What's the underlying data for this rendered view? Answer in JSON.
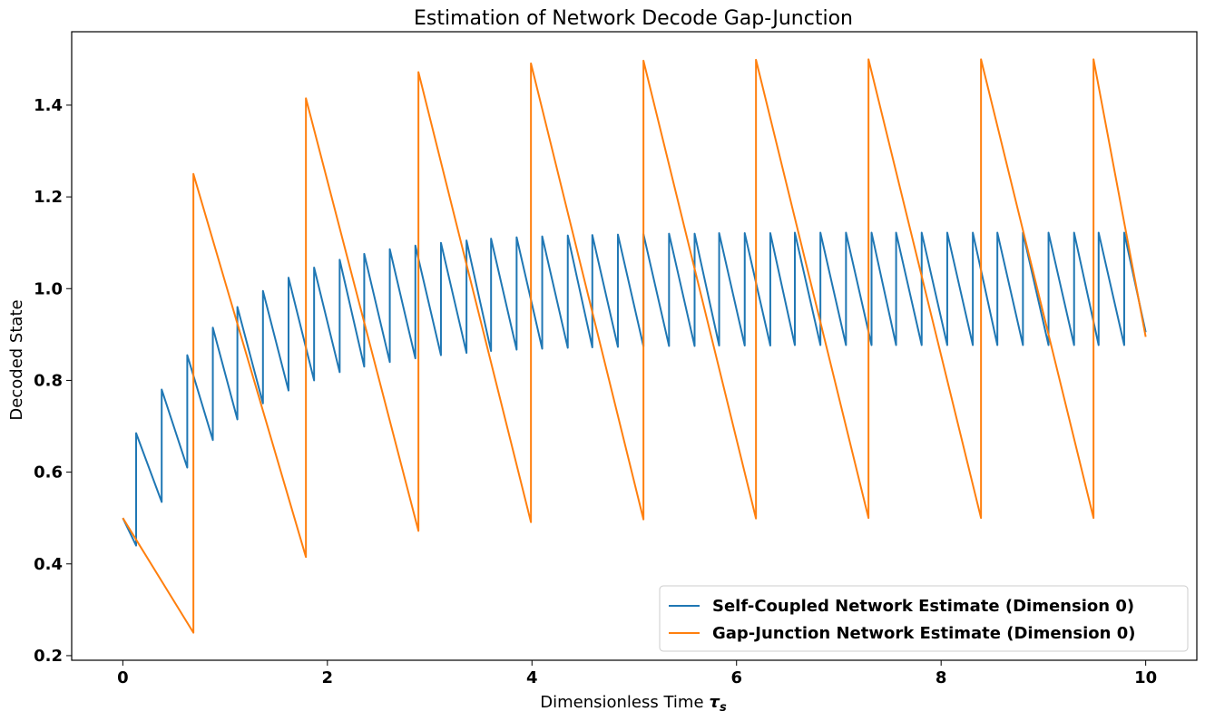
{
  "chart_data": {
    "type": "line",
    "title": "Estimation of Network Decode Gap-Junction",
    "xlabel": "Dimensionless Time",
    "xlabel_symbol": "τ",
    "xlabel_subscript": "s",
    "ylabel": "Decoded State",
    "xlim": [
      -0.5,
      10.5
    ],
    "ylim": [
      0.19,
      1.56
    ],
    "xticks": [
      0,
      2,
      4,
      6,
      8,
      10
    ],
    "yticks": [
      0.2,
      0.4,
      0.6,
      0.8,
      1.0,
      1.2,
      1.4
    ],
    "xtick_labels": [
      "0",
      "2",
      "4",
      "6",
      "8",
      "10"
    ],
    "ytick_labels": [
      "0.2",
      "0.4",
      "0.6",
      "0.8",
      "1.0",
      "1.2",
      "1.4"
    ],
    "grid": false,
    "legend_position": "lower-right",
    "series": [
      {
        "name": "Self-Coupled  Network Estimate (Dimension 0)",
        "color": "#1f77b4",
        "x": [
          0,
          0.13,
          0.13,
          0.38,
          0.38,
          0.63,
          0.63,
          0.88,
          0.88,
          1.12,
          1.12,
          1.37,
          1.37,
          1.62,
          1.62,
          1.87,
          1.87,
          2.12,
          2.12,
          2.36,
          2.36,
          2.61,
          2.61,
          2.86,
          2.86,
          3.11,
          3.11,
          3.36,
          3.36,
          3.6,
          3.6,
          3.85,
          3.85,
          4.1,
          4.1,
          4.35,
          4.35,
          4.59,
          4.59,
          4.84,
          4.84,
          5.09,
          5.09,
          5.34,
          5.34,
          5.59,
          5.59,
          5.83,
          5.83,
          6.08,
          6.08,
          6.33,
          6.33,
          6.57,
          6.57,
          6.82,
          6.82,
          7.07,
          7.07,
          7.32,
          7.32,
          7.56,
          7.56,
          7.81,
          7.81,
          8.06,
          8.06,
          8.31,
          8.31,
          8.55,
          8.55,
          8.8,
          8.8,
          9.05,
          9.05,
          9.3,
          9.3,
          9.54,
          9.54,
          9.79,
          9.79,
          10.0
        ],
        "y": [
          0.5,
          0.44,
          0.685,
          0.535,
          0.78,
          0.61,
          0.855,
          0.67,
          0.915,
          0.715,
          0.96,
          0.75,
          0.995,
          0.778,
          1.024,
          0.8,
          1.046,
          0.818,
          1.063,
          0.83,
          1.076,
          0.84,
          1.086,
          0.848,
          1.094,
          0.855,
          1.1,
          0.86,
          1.105,
          0.864,
          1.109,
          0.867,
          1.112,
          0.869,
          1.114,
          0.871,
          1.116,
          0.872,
          1.117,
          0.873,
          1.118,
          0.874,
          1.119,
          0.875,
          1.12,
          0.875,
          1.12,
          0.876,
          1.121,
          0.876,
          1.121,
          0.876,
          1.121,
          0.877,
          1.122,
          0.877,
          1.122,
          0.877,
          1.122,
          0.877,
          1.122,
          0.877,
          1.122,
          0.877,
          1.122,
          0.877,
          1.122,
          0.877,
          1.122,
          0.877,
          1.122,
          0.877,
          1.122,
          0.877,
          1.122,
          0.877,
          1.122,
          0.877,
          1.122,
          0.877,
          1.122,
          0.905
        ]
      },
      {
        "name": "Gap-Junction  Network Estimate (Dimension 0)",
        "color": "#ff7f0e",
        "x": [
          0,
          0.69,
          0.69,
          1.79,
          1.79,
          2.89,
          2.89,
          3.99,
          3.99,
          5.09,
          5.09,
          6.19,
          6.19,
          7.29,
          7.29,
          8.39,
          8.39,
          9.49,
          9.49,
          10.0
        ],
        "y": [
          0.5,
          0.25,
          1.25,
          0.415,
          1.415,
          0.472,
          1.472,
          0.491,
          1.491,
          0.497,
          1.497,
          0.499,
          1.499,
          0.5,
          1.5,
          0.5,
          1.5,
          0.5,
          1.5,
          0.895
        ]
      }
    ]
  }
}
